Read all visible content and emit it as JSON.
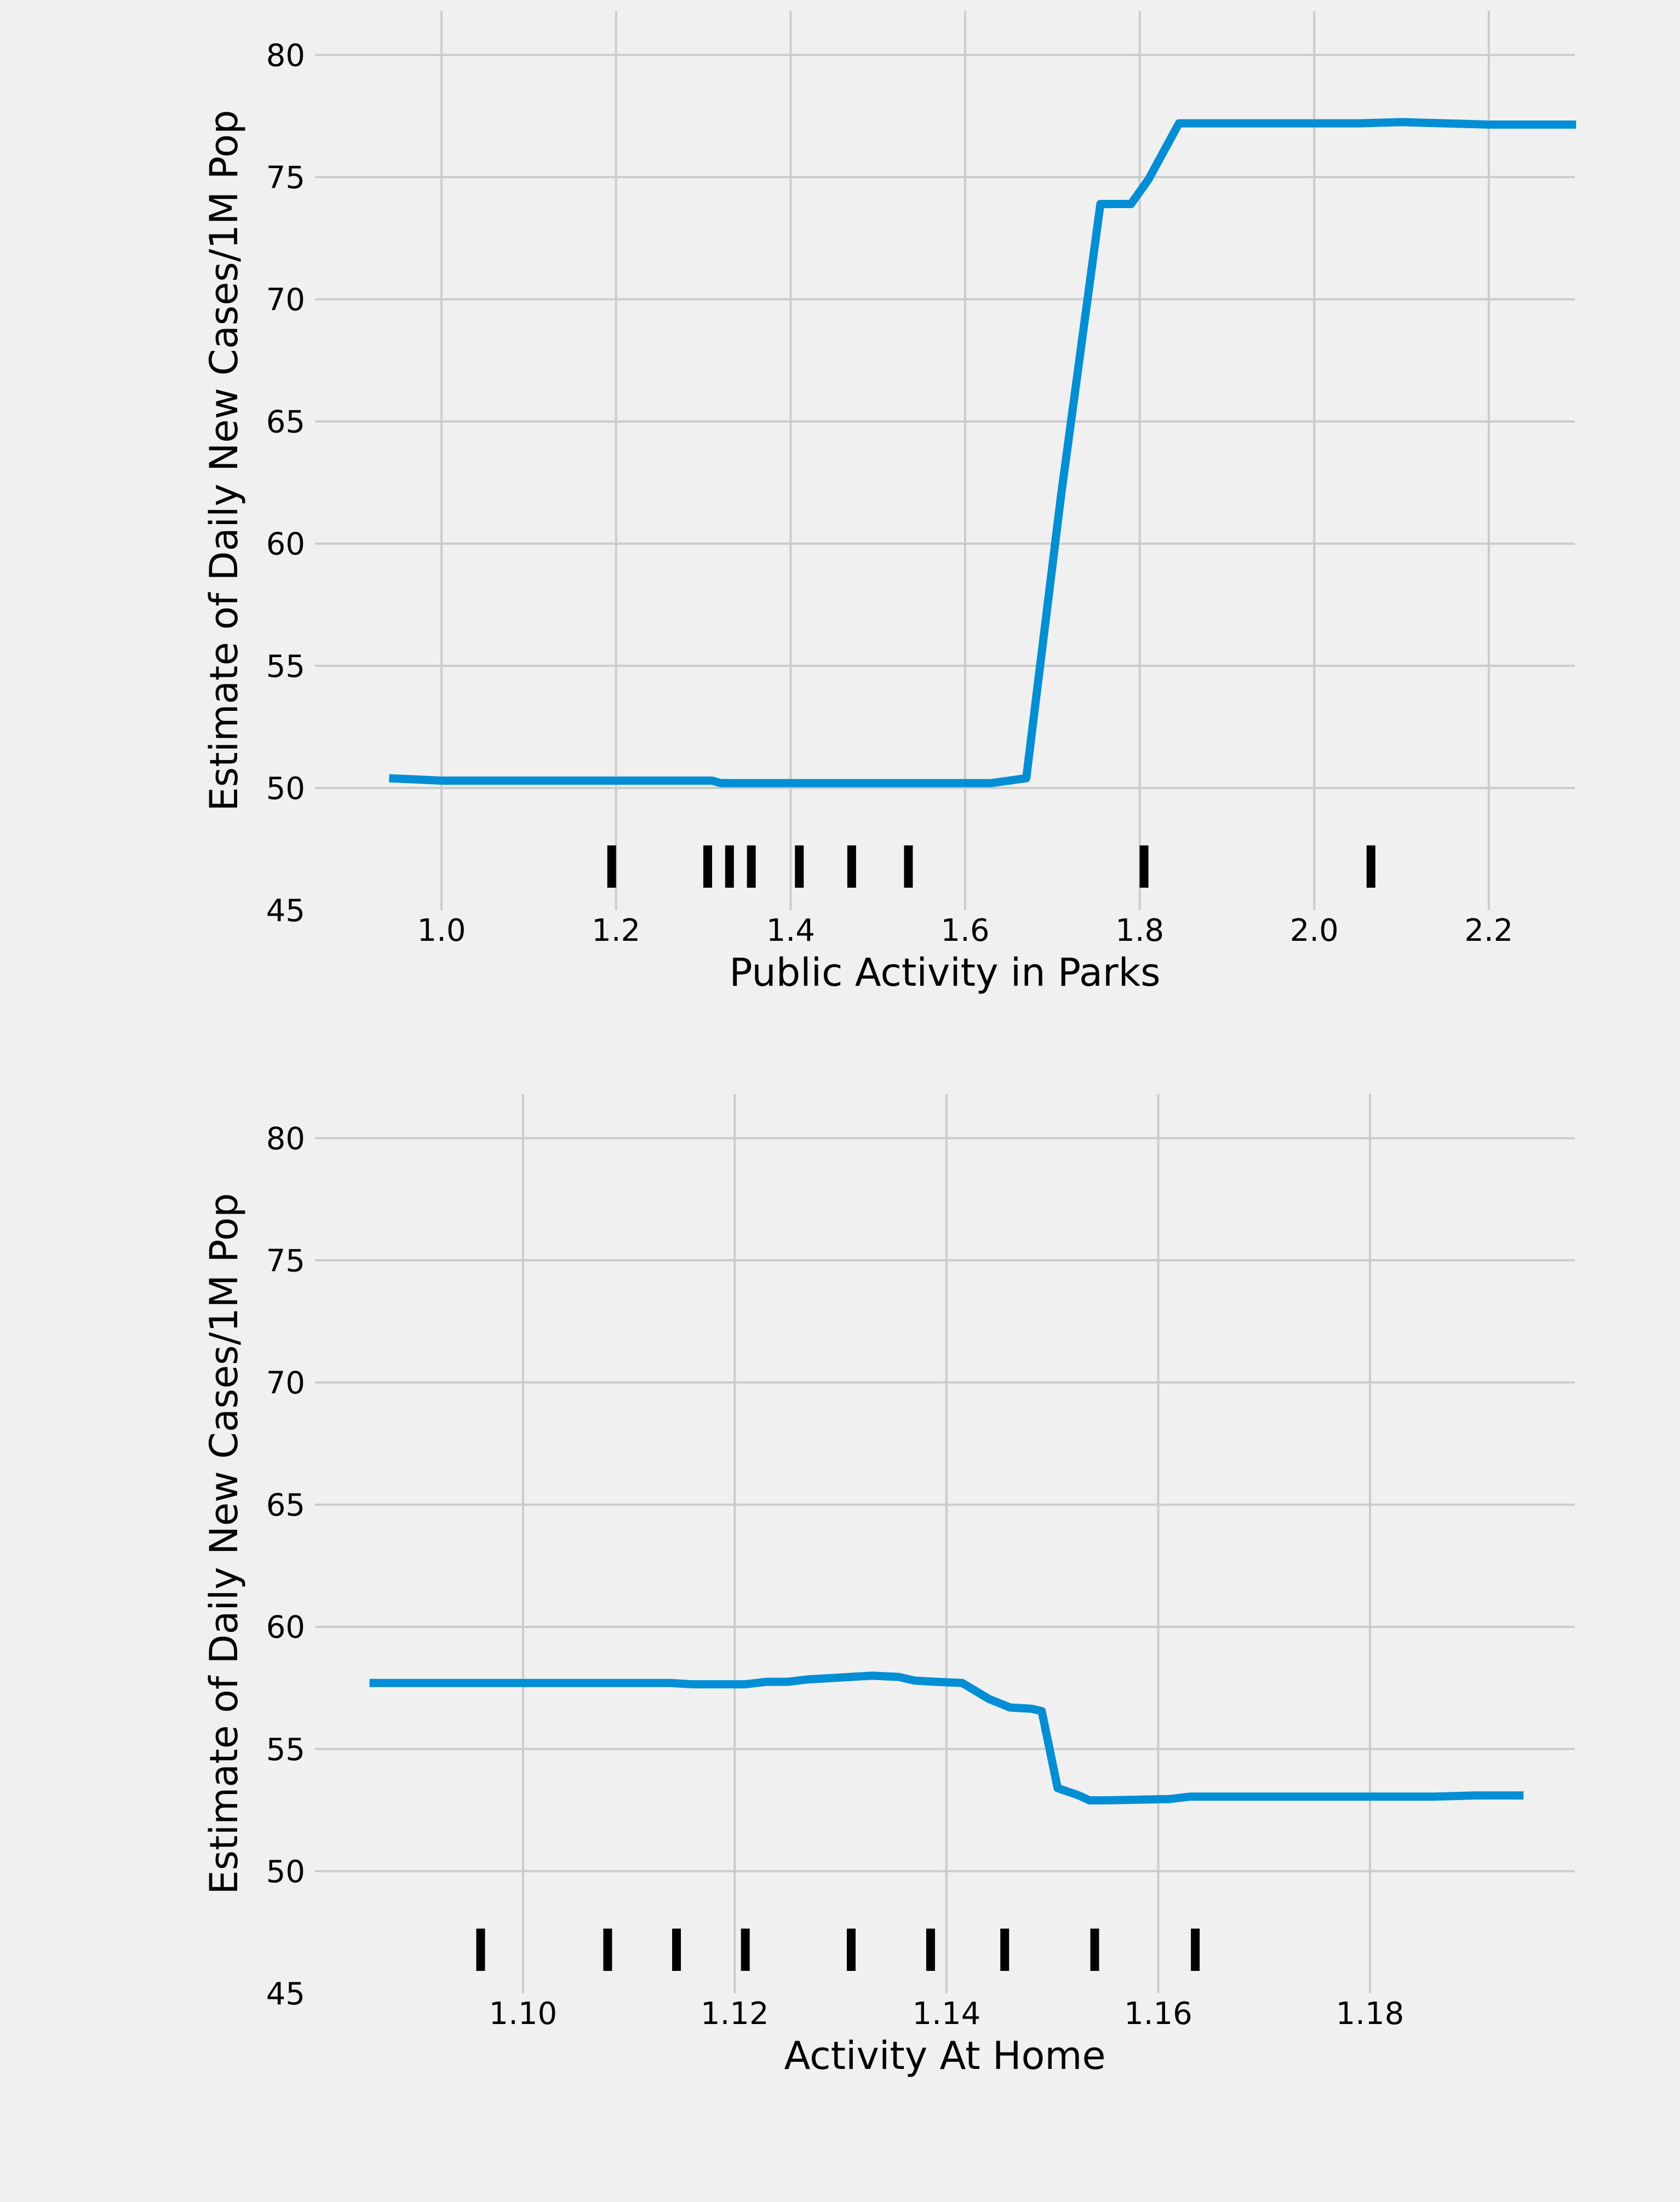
{
  "colors": {
    "background": "#f0f0f0",
    "grid": "#cbcbcb",
    "line": "#008fd5",
    "rug": "#000000"
  },
  "chart_data": [
    {
      "type": "line",
      "xlabel": "Public Activity in Parks",
      "ylabel": "Estimate of Daily New Cases/1M Pop",
      "xlim": [
        0.855,
        2.2986
      ],
      "ylim": [
        45,
        81.8
      ],
      "xticks": [
        1.0,
        1.2,
        1.4,
        1.6,
        1.8,
        2.0,
        2.2
      ],
      "xtick_labels": [
        "1.0",
        "1.2",
        "1.4",
        "1.6",
        "1.8",
        "2.0",
        "2.2"
      ],
      "yticks": [
        45,
        50,
        55,
        60,
        65,
        70,
        75,
        80
      ],
      "ytick_labels": [
        "45",
        "50",
        "55",
        "60",
        "65",
        "70",
        "75",
        "80"
      ],
      "grid": true,
      "series": [
        {
          "x": [
            0.94,
            1.0,
            1.05,
            1.1,
            1.2,
            1.25,
            1.31,
            1.32,
            1.4,
            1.5,
            1.6,
            1.63,
            1.67,
            1.71,
            1.755,
            1.79,
            1.81,
            1.845,
            1.9,
            2.0,
            2.05,
            2.1,
            2.15,
            2.2,
            2.3
          ],
          "y": [
            50.4,
            50.3,
            50.3,
            50.3,
            50.3,
            50.3,
            50.3,
            50.2,
            50.2,
            50.2,
            50.2,
            50.2,
            50.4,
            62.0,
            73.9,
            73.9,
            74.9,
            77.2,
            77.2,
            77.2,
            77.2,
            77.25,
            77.2,
            77.15,
            77.15
          ]
        }
      ],
      "rug_x": [
        1.195,
        1.305,
        1.33,
        1.355,
        1.41,
        1.47,
        1.535,
        1.805,
        2.065
      ]
    },
    {
      "type": "line",
      "xlabel": "Activity At Home",
      "ylabel": "Estimate of Daily New Cases/1M Pop",
      "xlim": [
        1.08035,
        1.19935
      ],
      "ylim": [
        45,
        81.8
      ],
      "xticks": [
        1.1,
        1.12,
        1.14,
        1.16,
        1.18
      ],
      "xtick_labels": [
        "1.10",
        "1.12",
        "1.14",
        "1.16",
        "1.18"
      ],
      "yticks": [
        45,
        50,
        55,
        60,
        65,
        70,
        75,
        80
      ],
      "ytick_labels": [
        "45",
        "50",
        "55",
        "60",
        "65",
        "70",
        "75",
        "80"
      ],
      "grid": true,
      "series": [
        {
          "x": [
            1.0855,
            1.1,
            1.114,
            1.116,
            1.121,
            1.123,
            1.125,
            1.127,
            1.129,
            1.133,
            1.1355,
            1.137,
            1.139,
            1.1415,
            1.144,
            1.146,
            1.148,
            1.149,
            1.1505,
            1.1525,
            1.1535,
            1.155,
            1.161,
            1.163,
            1.17,
            1.18,
            1.186,
            1.19,
            1.1945
          ],
          "y": [
            57.7,
            57.7,
            57.7,
            57.65,
            57.65,
            57.75,
            57.75,
            57.85,
            57.9,
            58.0,
            57.95,
            57.8,
            57.75,
            57.7,
            57.05,
            56.7,
            56.65,
            56.55,
            53.4,
            53.1,
            52.9,
            52.9,
            52.95,
            53.05,
            53.05,
            53.05,
            53.05,
            53.1,
            53.1
          ]
        }
      ],
      "rug_x": [
        1.096,
        1.108,
        1.1145,
        1.121,
        1.131,
        1.1385,
        1.1455,
        1.154,
        1.1635
      ]
    }
  ]
}
